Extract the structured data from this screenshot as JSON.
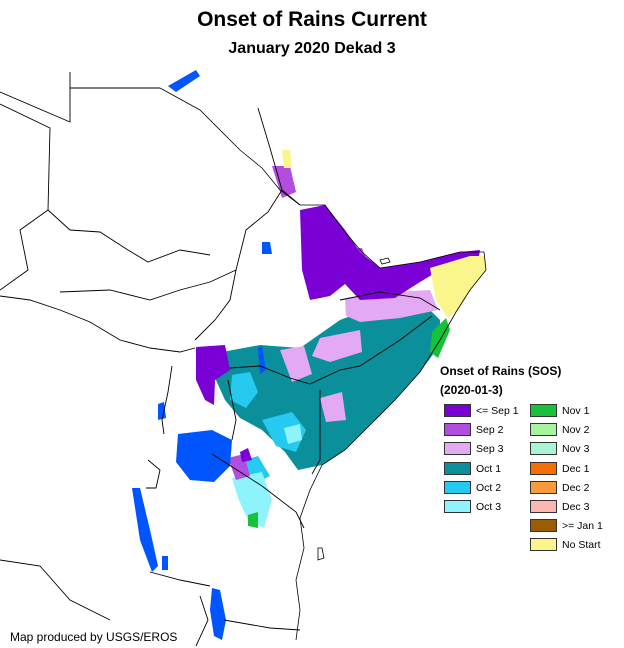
{
  "header": {
    "title": "Onset of Rains Current",
    "subtitle": "January 2020 Dekad 3"
  },
  "legend": {
    "title_line1": "Onset of Rains (SOS)",
    "title_line2": "(2020-01-3)",
    "column1": [
      {
        "label": "<= Sep 1",
        "color": "#7a00d6"
      },
      {
        "label": "Sep 2",
        "color": "#b14ee0"
      },
      {
        "label": "Sep 3",
        "color": "#e3a9f3"
      },
      {
        "label": "Oct 1",
        "color": "#0b8f9a"
      },
      {
        "label": "Oct 2",
        "color": "#26c9f0"
      },
      {
        "label": "Oct 3",
        "color": "#8ef3fb"
      }
    ],
    "column2": [
      {
        "label": "Nov 1",
        "color": "#17c13a"
      },
      {
        "label": "Nov 2",
        "color": "#a6f39f"
      },
      {
        "label": "Nov 3",
        "color": "#a8f5d1"
      },
      {
        "label": "Dec 1",
        "color": "#f26f00"
      },
      {
        "label": "Dec 2",
        "color": "#fb9a3c"
      },
      {
        "label": "Dec 3",
        "color": "#fbb8ae"
      },
      {
        "label": ">= Jan 1",
        "color": "#9b5b00"
      },
      {
        "label": "No Start",
        "color": "#fbf68c"
      }
    ]
  },
  "footer": {
    "credit": "Map produced by USGS/EROS"
  },
  "colors": {
    "water": "#0055ff",
    "border": "#000000",
    "background": "#ffffff"
  }
}
